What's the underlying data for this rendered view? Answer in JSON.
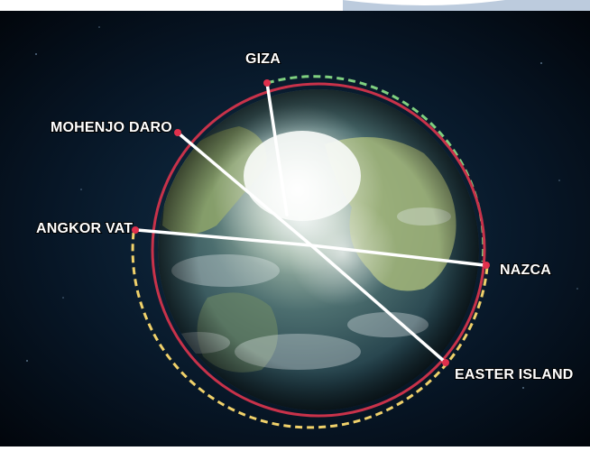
{
  "diagram": {
    "sites": [
      {
        "id": "giza",
        "label": "GIZA"
      },
      {
        "id": "mohenjo-daro",
        "label": "MOHENJO DARO"
      },
      {
        "id": "angkor-vat",
        "label": "ANGKOR VAT"
      },
      {
        "id": "nazca",
        "label": "NAZCA"
      },
      {
        "id": "easter-island",
        "label": "EASTER ISLAND"
      }
    ],
    "colors": {
      "background": "#050b14",
      "globe_ocean": "#2a4450",
      "land": "#8fa66a",
      "ice": "#f4f8f2",
      "circle_red": "#c8324a",
      "dash_green": "#7fd080",
      "dash_yellow": "#f0d16a",
      "line_white": "#ffffff"
    }
  }
}
